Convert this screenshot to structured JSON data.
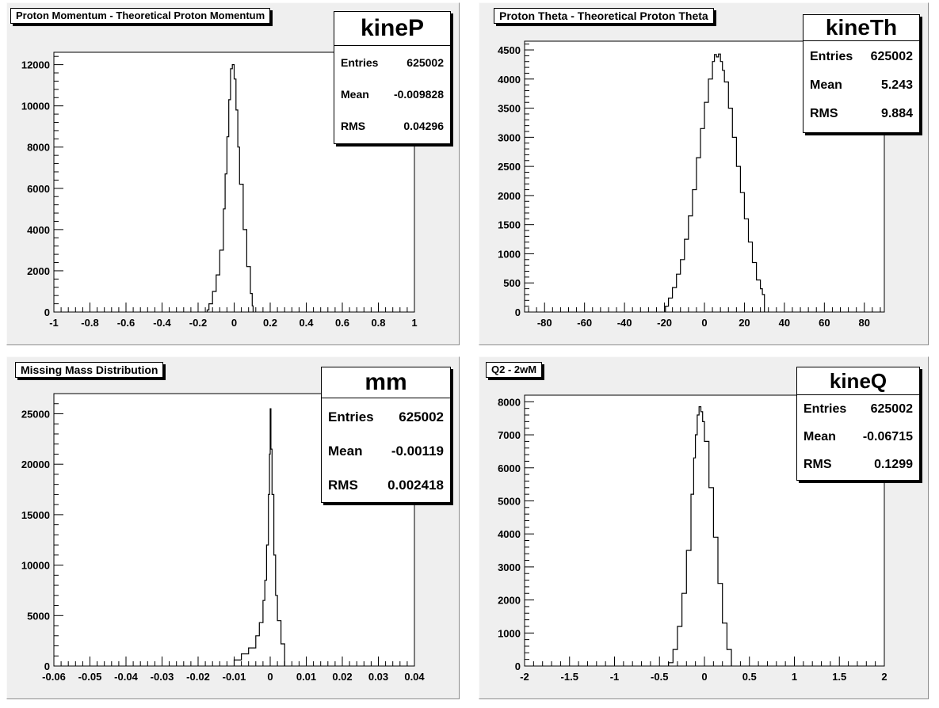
{
  "pads": [
    {
      "title": "Proton Momentum - Theoretical Proton Momentum",
      "stats": {
        "name": "kineP",
        "entries_label": "Entries",
        "entries": "625002",
        "mean_label": "Mean",
        "mean": "-0.009828",
        "rms_label": "RMS",
        "rms": "0.04296"
      }
    },
    {
      "title": "Proton Theta - Theoretical Proton Theta",
      "stats": {
        "name": "kineTh",
        "entries_label": "Entries",
        "entries": "625002",
        "mean_label": "Mean",
        "mean": "5.243",
        "rms_label": "RMS",
        "rms": "9.884"
      }
    },
    {
      "title": "Missing Mass Distribution",
      "stats": {
        "name": "mm",
        "entries_label": "Entries",
        "entries": "625002",
        "mean_label": "Mean",
        "mean": "-0.00119",
        "rms_label": "RMS",
        "rms": "0.002418"
      }
    },
    {
      "title": "Q2 - 2wM",
      "stats": {
        "name": "kineQ",
        "entries_label": "Entries",
        "entries": "625002",
        "mean_label": "Mean",
        "mean": "-0.06715",
        "rms_label": "RMS",
        "rms": "0.1299"
      }
    }
  ],
  "chart_data": [
    {
      "type": "histogram",
      "title": "Proton Momentum - Theoretical Proton Momentum",
      "xlim": [
        -1,
        1
      ],
      "ylim": [
        0,
        12600
      ],
      "xticks": [
        "-1",
        "-0.8",
        "-0.6",
        "-0.4",
        "-0.2",
        "0",
        "0.2",
        "0.4",
        "0.6",
        "0.8",
        "1"
      ],
      "yticks": [
        "0",
        "2000",
        "4000",
        "6000",
        "8000",
        "10000",
        "12000"
      ],
      "x": [
        -0.15,
        -0.14,
        -0.12,
        -0.1,
        -0.08,
        -0.06,
        -0.05,
        -0.04,
        -0.03,
        -0.02,
        -0.01,
        0.0,
        0.01,
        0.02,
        0.03,
        0.05,
        0.07,
        0.09,
        0.1,
        0.105
      ],
      "y": [
        100,
        400,
        1000,
        1800,
        3000,
        5000,
        6700,
        8500,
        10300,
        11800,
        12000,
        11300,
        9800,
        8000,
        6200,
        4000,
        2200,
        900,
        300,
        0
      ]
    },
    {
      "type": "histogram",
      "title": "Proton Theta - Theoretical Proton Theta",
      "xlim": [
        -90,
        90
      ],
      "ylim": [
        0,
        4650
      ],
      "xticks": [
        "-80",
        "-60",
        "-40",
        "-20",
        "0",
        "20",
        "40",
        "60",
        "80"
      ],
      "yticks": [
        "0",
        "500",
        "1000",
        "1500",
        "2000",
        "2500",
        "3000",
        "3500",
        "4000",
        "4500"
      ],
      "x": [
        -19.5,
        -18,
        -16,
        -14,
        -12,
        -10,
        -8,
        -6,
        -4,
        -2,
        0,
        2,
        4,
        5,
        6,
        7,
        8,
        9,
        10,
        12,
        14,
        16,
        18,
        20,
        22,
        24,
        26,
        28,
        29,
        30
      ],
      "y": [
        100,
        240,
        420,
        650,
        900,
        1250,
        1650,
        2100,
        2650,
        3150,
        3600,
        4000,
        4300,
        4420,
        4380,
        4430,
        4300,
        4150,
        3950,
        3500,
        3000,
        2500,
        2050,
        1600,
        1200,
        850,
        550,
        400,
        300,
        200
      ]
    },
    {
      "type": "histogram",
      "title": "Missing Mass Distribution",
      "xlim": [
        -0.06,
        0.04
      ],
      "ylim": [
        0,
        27000
      ],
      "xticks": [
        "-0.06",
        "-0.05",
        "-0.04",
        "-0.03",
        "-0.02",
        "-0.01",
        "0",
        "0.01",
        "0.02",
        "0.03",
        "0.04"
      ],
      "yticks": [
        "0",
        "5000",
        "10000",
        "15000",
        "20000",
        "25000"
      ],
      "x": [
        -0.01,
        -0.008,
        -0.006,
        -0.004,
        -0.003,
        -0.002,
        -0.0015,
        -0.001,
        -0.0005,
        -0.0002,
        0.0,
        0.0002,
        0.0005,
        0.001,
        0.0015,
        0.002,
        0.003,
        0.004
      ],
      "y": [
        600,
        1200,
        1800,
        3000,
        4300,
        6500,
        8500,
        12000,
        17000,
        21000,
        25500,
        21500,
        17000,
        11000,
        7000,
        4500,
        2200,
        500
      ]
    },
    {
      "type": "histogram",
      "title": "Q2 - 2wM",
      "xlim": [
        -2,
        2
      ],
      "ylim": [
        0,
        8200
      ],
      "xticks": [
        "-2",
        "-1.5",
        "-1",
        "-0.5",
        "0",
        "0.5",
        "1",
        "1.5",
        "2"
      ],
      "yticks": [
        "0",
        "1000",
        "2000",
        "3000",
        "4000",
        "5000",
        "6000",
        "7000",
        "8000"
      ],
      "x": [
        -0.4,
        -0.35,
        -0.3,
        -0.25,
        -0.2,
        -0.15,
        -0.12,
        -0.1,
        -0.08,
        -0.06,
        -0.04,
        -0.02,
        0.0,
        0.05,
        0.1,
        0.15,
        0.2,
        0.25,
        0.3
      ],
      "y": [
        100,
        500,
        1200,
        2200,
        3500,
        5200,
        6300,
        7000,
        7600,
        7850,
        7700,
        7400,
        6800,
        5400,
        3900,
        2500,
        1300,
        500,
        150
      ]
    }
  ]
}
